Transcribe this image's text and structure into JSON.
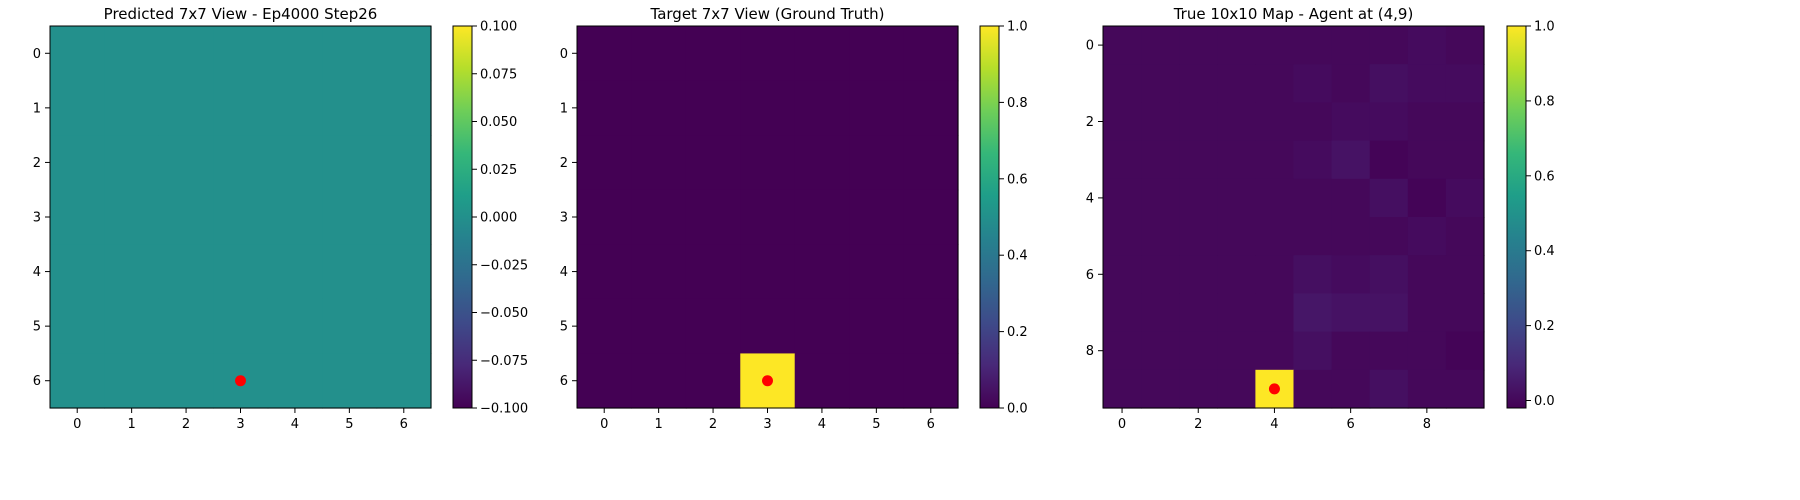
{
  "chart_data": [
    {
      "type": "heatmap",
      "title": "Predicted 7x7 View - Ep4000 Step26",
      "rows": 7,
      "cols": 7,
      "x_ticks": [
        0,
        1,
        2,
        3,
        4,
        5,
        6
      ],
      "y_ticks": [
        0,
        1,
        2,
        3,
        4,
        5,
        6
      ],
      "values": [
        [
          0,
          0,
          0,
          0,
          0,
          0,
          0
        ],
        [
          0,
          0,
          0,
          0,
          0,
          0,
          0
        ],
        [
          0,
          0,
          0,
          0,
          0,
          0,
          0
        ],
        [
          0,
          0,
          0,
          0,
          0,
          0,
          0
        ],
        [
          0,
          0,
          0,
          0,
          0,
          0,
          0
        ],
        [
          0,
          0,
          0,
          0,
          0,
          0,
          0
        ],
        [
          0,
          0,
          0,
          0,
          0,
          0,
          0
        ]
      ],
      "colorbar": {
        "vmin": -0.1,
        "vmax": 0.1,
        "ticks": [
          -0.1,
          -0.075,
          -0.05,
          -0.025,
          0.0,
          0.025,
          0.05,
          0.075,
          0.1
        ],
        "tick_labels": [
          "−0.100",
          "−0.075",
          "−0.050",
          "−0.025",
          "0.000",
          "0.025",
          "0.050",
          "0.075",
          "0.100"
        ]
      },
      "agent_marker": {
        "x": 3,
        "y": 6,
        "color": "#ff0000"
      }
    },
    {
      "type": "heatmap",
      "title": "Target 7x7 View (Ground Truth)",
      "rows": 7,
      "cols": 7,
      "x_ticks": [
        0,
        1,
        2,
        3,
        4,
        5,
        6
      ],
      "y_ticks": [
        0,
        1,
        2,
        3,
        4,
        5,
        6
      ],
      "values": [
        [
          0,
          0,
          0,
          0,
          0,
          0,
          0
        ],
        [
          0,
          0,
          0,
          0,
          0,
          0,
          0
        ],
        [
          0,
          0,
          0,
          0,
          0,
          0,
          0
        ],
        [
          0,
          0,
          0,
          0,
          0,
          0,
          0
        ],
        [
          0,
          0,
          0,
          0,
          0,
          0,
          0
        ],
        [
          0,
          0,
          0,
          0,
          0,
          0,
          0
        ],
        [
          0,
          0,
          0,
          1,
          0,
          0,
          0
        ]
      ],
      "colorbar": {
        "vmin": 0.0,
        "vmax": 1.0,
        "ticks": [
          0.0,
          0.2,
          0.4,
          0.6,
          0.8,
          1.0
        ],
        "tick_labels": [
          "0.0",
          "0.2",
          "0.4",
          "0.6",
          "0.8",
          "1.0"
        ]
      },
      "agent_marker": {
        "x": 3,
        "y": 6,
        "color": "#ff0000"
      }
    },
    {
      "type": "heatmap",
      "title": "True 10x10 Map - Agent at (4,9)",
      "rows": 10,
      "cols": 10,
      "x_ticks": [
        0,
        2,
        4,
        6,
        8
      ],
      "y_ticks": [
        0,
        2,
        4,
        6,
        8
      ],
      "values": [
        [
          0.0,
          0.0,
          0.0,
          0.0,
          0.0,
          0.0,
          0.0,
          0.0,
          0.01,
          0.0
        ],
        [
          0.0,
          0.0,
          0.0,
          0.0,
          0.0,
          0.01,
          0.0,
          0.02,
          0.01,
          0.01
        ],
        [
          0.0,
          0.0,
          0.0,
          0.0,
          0.0,
          0.0,
          0.01,
          0.01,
          0.0,
          0.0
        ],
        [
          0.0,
          0.0,
          0.0,
          0.0,
          0.0,
          0.01,
          0.03,
          -0.01,
          0.0,
          0.0
        ],
        [
          0.0,
          0.0,
          0.0,
          0.0,
          0.0,
          0.0,
          0.0,
          0.02,
          -0.01,
          0.01
        ],
        [
          0.0,
          0.0,
          0.0,
          0.0,
          0.0,
          0.0,
          0.0,
          0.0,
          0.01,
          0.0
        ],
        [
          0.0,
          0.0,
          0.0,
          0.0,
          0.0,
          0.02,
          0.01,
          0.02,
          0.0,
          0.0
        ],
        [
          0.0,
          0.0,
          0.0,
          0.0,
          0.0,
          0.04,
          0.03,
          0.03,
          0.0,
          0.0
        ],
        [
          0.0,
          0.0,
          0.0,
          0.0,
          0.0,
          0.02,
          0.0,
          0.0,
          0.0,
          -0.01
        ],
        [
          0.0,
          0.0,
          0.0,
          0.0,
          1.0,
          0.0,
          0.0,
          0.02,
          0.0,
          0.0
        ]
      ],
      "colorbar": {
        "vmin": -0.02,
        "vmax": 1.0,
        "ticks": [
          0.0,
          0.2,
          0.4,
          0.6,
          0.8,
          1.0
        ],
        "tick_labels": [
          "0.0",
          "0.2",
          "0.4",
          "0.6",
          "0.8",
          "1.0"
        ]
      },
      "agent_marker": {
        "x": 4,
        "y": 9,
        "color": "#ff0000"
      }
    }
  ]
}
